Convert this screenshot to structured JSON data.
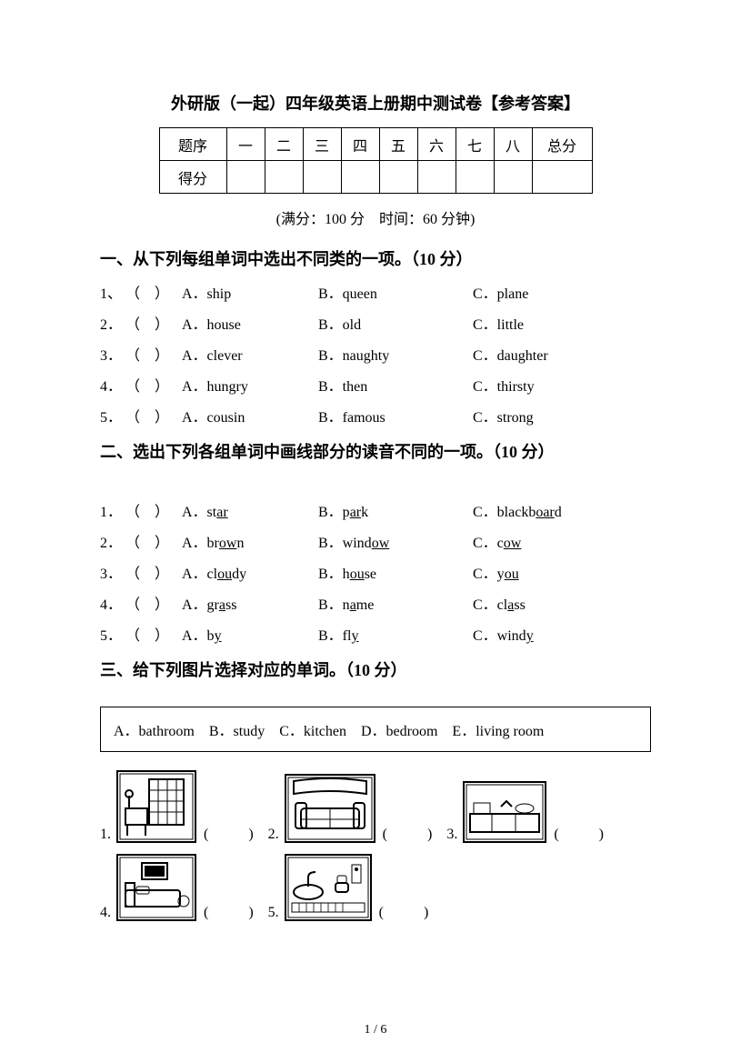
{
  "title": "外研版（一起）四年级英语上册期中测试卷【参考答案】",
  "score_table": {
    "row1": [
      "题序",
      "一",
      "二",
      "三",
      "四",
      "五",
      "六",
      "七",
      "八",
      "总分"
    ],
    "row2_label": "得分"
  },
  "meta": "(满分：100 分　时间：60 分钟)",
  "sections": {
    "s1": {
      "heading": "一、从下列每组单词中选出不同类的一项。（10 分）",
      "items": [
        {
          "n": "1、",
          "a": "A．ship",
          "b": "B．queen",
          "c": "C．plane"
        },
        {
          "n": "2．",
          "a": "A．house",
          "b": "B．old",
          "c": "C．little"
        },
        {
          "n": "3．",
          "a": "A．clever",
          "b": "B．naughty",
          "c": "C．daughter"
        },
        {
          "n": "4．",
          "a": "A．hungry",
          "b": "B．then",
          "c": "C．thirsty"
        },
        {
          "n": "5．",
          "a": "A．cousin",
          "b": "B．famous",
          "c": "C．strong"
        }
      ]
    },
    "s2": {
      "heading": "二、选出下列各组单词中画线部分的读音不同的一项。（10 分）",
      "items": [
        {
          "n": "1．",
          "a": {
            "pre": "A．st",
            "u": "ar",
            "post": ""
          },
          "b": {
            "pre": "B．p",
            "u": "ar",
            "post": "k"
          },
          "c": {
            "pre": "C．blackb",
            "u": "oar",
            "post": "d"
          }
        },
        {
          "n": "2．",
          "a": {
            "pre": "A．br",
            "u": "ow",
            "post": "n"
          },
          "b": {
            "pre": "B．wind",
            "u": "ow",
            "post": ""
          },
          "c": {
            "pre": "C．c",
            "u": "ow",
            "post": ""
          }
        },
        {
          "n": "3．",
          "a": {
            "pre": "A．cl",
            "u": "ou",
            "post": "dy"
          },
          "b": {
            "pre": "B．h",
            "u": "ou",
            "post": "se"
          },
          "c": {
            "pre": "C．y",
            "u": "ou",
            "post": ""
          }
        },
        {
          "n": "4．",
          "a": {
            "pre": "A．gr",
            "u": "a",
            "post": "ss"
          },
          "b": {
            "pre": "B．n",
            "u": "a",
            "post": "me"
          },
          "c": {
            "pre": "C．cl",
            "u": "a",
            "post": "ss"
          }
        },
        {
          "n": "5．",
          "a": {
            "pre": "A．b",
            "u": "y",
            "post": ""
          },
          "b": {
            "pre": "B．fl",
            "u": "y",
            "post": ""
          },
          "c": {
            "pre": "C．wind",
            "u": "y",
            "post": ""
          }
        }
      ]
    },
    "s3": {
      "heading": "三、给下列图片选择对应的单词。（10 分）",
      "wordbox": "A．bathroom　B．study　C．kitchen　D．bedroom　E．living room",
      "pics": [
        {
          "n": "1.",
          "w": 84,
          "h": 76,
          "kind": "study"
        },
        {
          "n": "2.",
          "w": 96,
          "h": 72,
          "kind": "living"
        },
        {
          "n": "3.",
          "w": 88,
          "h": 64,
          "kind": "kitchen"
        },
        {
          "n": "4.",
          "w": 84,
          "h": 70,
          "kind": "bedroom"
        },
        {
          "n": "5.",
          "w": 92,
          "h": 70,
          "kind": "bathroom"
        }
      ],
      "paren": "(　　)"
    }
  },
  "pager": "1 / 6"
}
